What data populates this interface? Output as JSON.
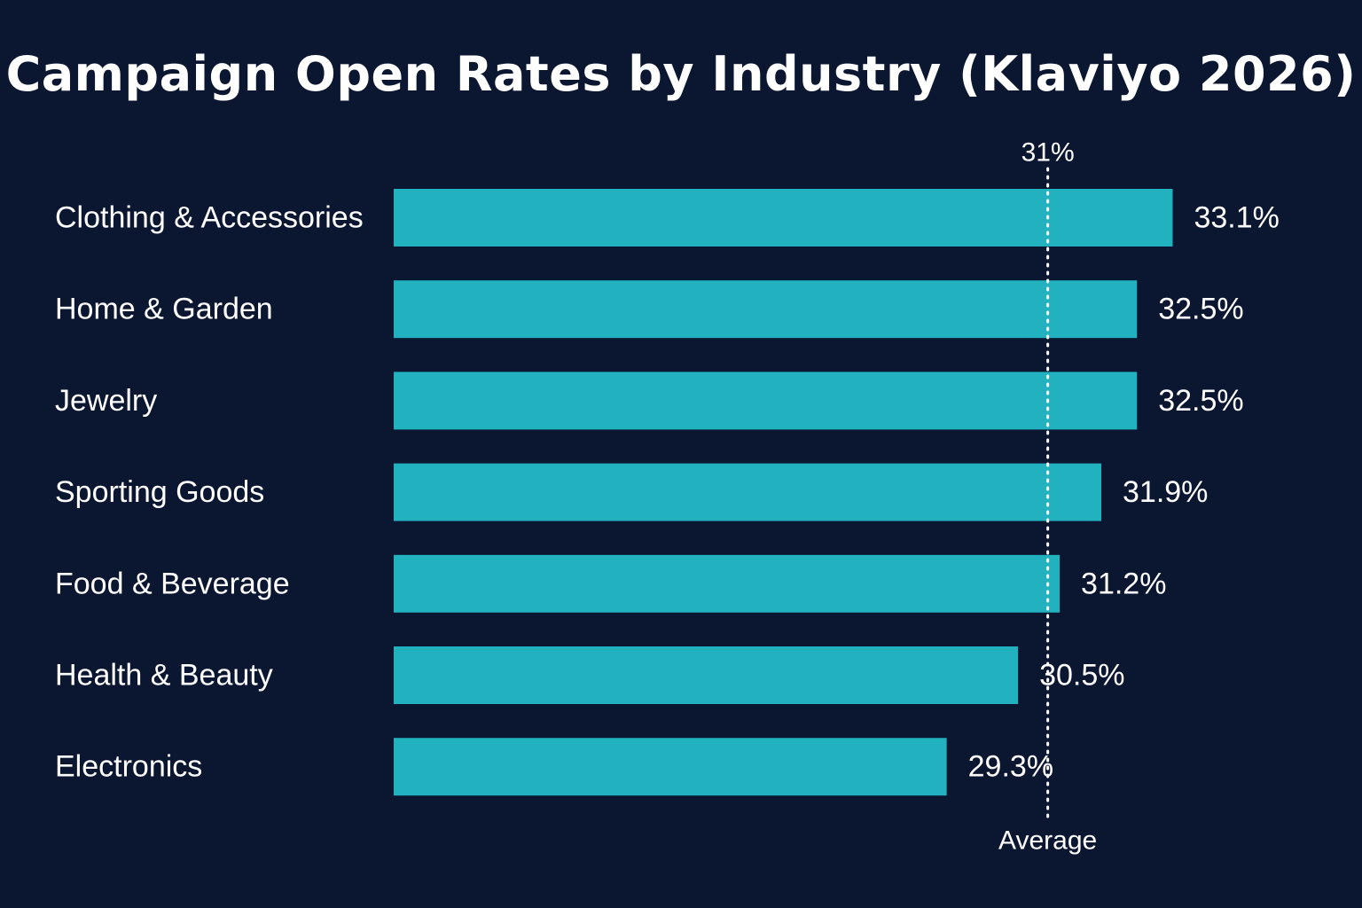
{
  "chart_data": {
    "type": "bar",
    "orientation": "horizontal",
    "title": "Campaign Open Rates by Industry (Klaviyo 2026)",
    "categories": [
      "Clothing & Accessories",
      "Home & Garden",
      "Jewelry",
      "Sporting Goods",
      "Food & Beverage",
      "Health & Beauty",
      "Electronics"
    ],
    "values": [
      33.1,
      32.5,
      32.5,
      31.9,
      31.2,
      30.5,
      29.3
    ],
    "value_labels": [
      "33.1%",
      "32.5%",
      "32.5%",
      "31.9%",
      "31.2%",
      "30.5%",
      "29.3%"
    ],
    "unit": "%",
    "xlim": [
      20,
      33.6
    ],
    "reference_line": {
      "value": 31,
      "top_label": "31%",
      "bottom_label": "Average",
      "style": "dotted"
    },
    "grid": false,
    "legend": "none",
    "colors": {
      "background": "#0b1631",
      "bar": "#22b2bf",
      "text": "#ffffff",
      "reference_line": "#ffffff"
    }
  }
}
